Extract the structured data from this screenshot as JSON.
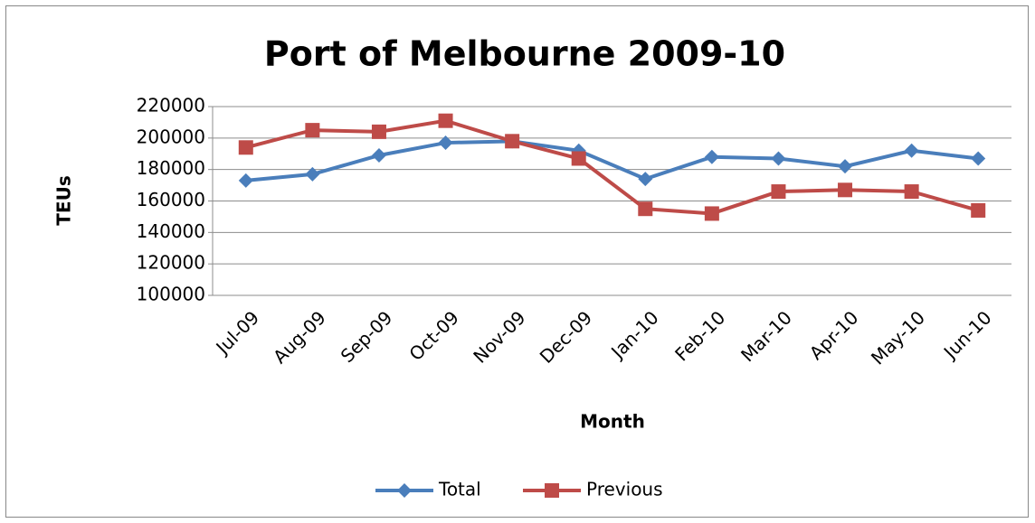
{
  "chart_data": {
    "type": "line",
    "title": "Port of Melbourne 2009-10",
    "xlabel": "Month",
    "ylabel": "TEUs",
    "categories": [
      "Jul-09",
      "Aug-09",
      "Sep-09",
      "Oct-09",
      "Nov-09",
      "Dec-09",
      "Jan-10",
      "Feb-10",
      "Mar-10",
      "Apr-10",
      "May-10",
      "Jun-10"
    ],
    "series": [
      {
        "name": "Total",
        "color": "#4a7ebb",
        "marker": "diamond",
        "values": [
          173000,
          177000,
          189000,
          197000,
          198000,
          192000,
          174000,
          188000,
          187000,
          182000,
          192000,
          187000
        ]
      },
      {
        "name": "Previous",
        "color": "#be4b48",
        "marker": "square",
        "values": [
          194000,
          205000,
          204000,
          211000,
          198000,
          187000,
          155000,
          152000,
          166000,
          167000,
          166000,
          154000
        ]
      }
    ],
    "ylim": [
      100000,
      220000
    ],
    "yticks": [
      100000,
      120000,
      140000,
      160000,
      180000,
      200000,
      220000
    ],
    "grid": true,
    "legend": "bottom"
  }
}
